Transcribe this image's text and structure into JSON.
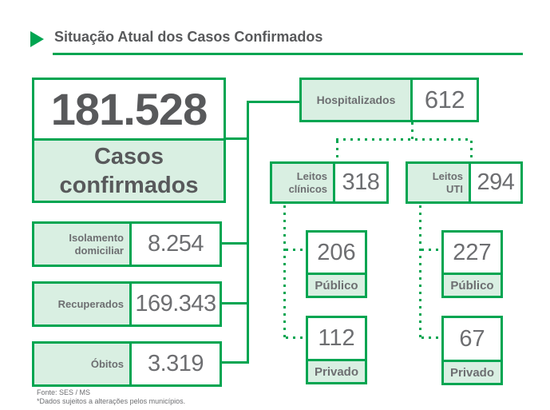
{
  "header": {
    "title": "Situação Atual dos Casos Confirmados"
  },
  "confirmed": {
    "value": "181.528",
    "label": "Casos confirmados"
  },
  "stats": {
    "isolamento": {
      "label_line1": "Isolamento",
      "label_line2": "domiciliar",
      "value": "8.254"
    },
    "recuperados": {
      "label": "Recuperados",
      "value": "169.343"
    },
    "obitos": {
      "label": "Óbitos",
      "value": "3.319"
    }
  },
  "hospital": {
    "hospitalizados": {
      "label": "Hospitalizados",
      "value": "612"
    },
    "leitos_clinicos": {
      "label_line1": "Leitos",
      "label_line2": "clínicos",
      "value": "318"
    },
    "leitos_uti": {
      "label_line1": "Leitos",
      "label_line2": "UTI",
      "value": "294"
    },
    "clinicos_publico": {
      "value": "206",
      "label": "Público"
    },
    "clinicos_privado": {
      "value": "112",
      "label": "Privado"
    },
    "uti_publico": {
      "value": "227",
      "label": "Público"
    },
    "uti_privado": {
      "value": "67",
      "label": "Privado"
    }
  },
  "footer": {
    "source": "Fonte: SES / MS",
    "note": "*Dados sujeitos a alterações pelos municípios."
  },
  "colors": {
    "green": "#00a551",
    "light_green": "#d9efe2",
    "text_gray": "#6d6e71",
    "dark_gray": "#58595b"
  }
}
